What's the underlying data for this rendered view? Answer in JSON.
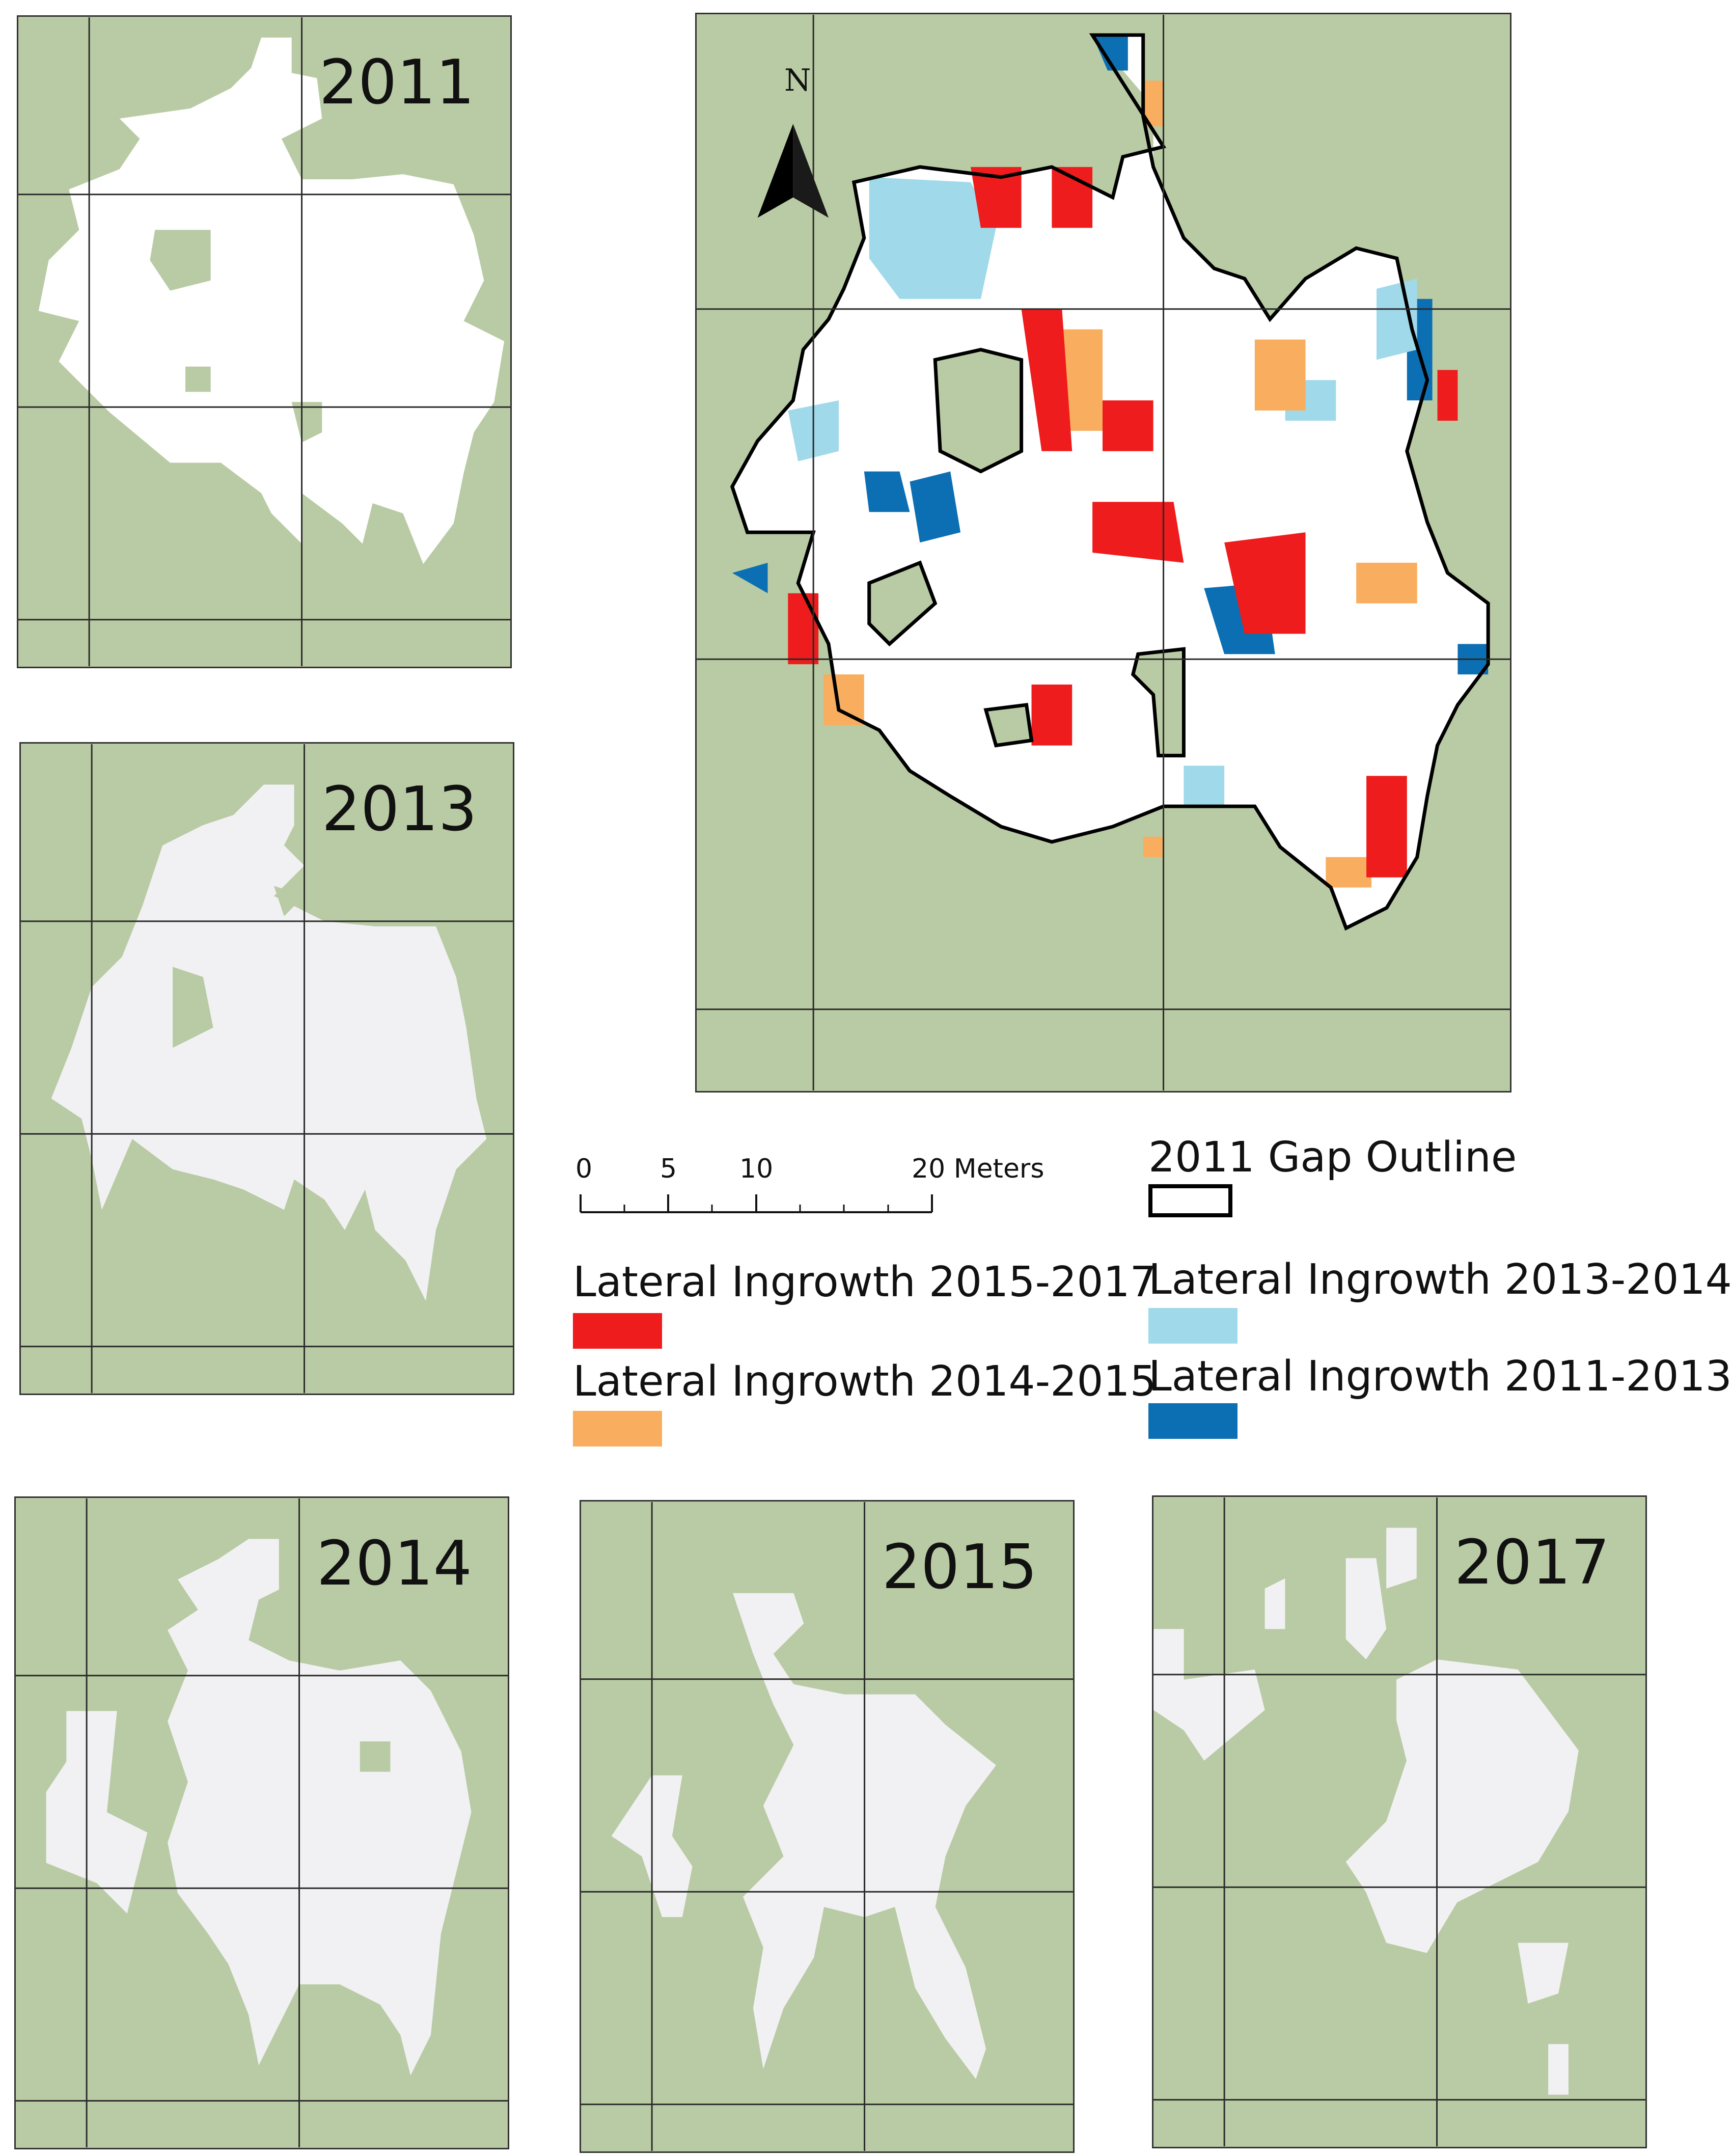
{
  "panels": {
    "p2011": {
      "year": "2011"
    },
    "p2013": {
      "year": "2013"
    },
    "p2014": {
      "year": "2014"
    },
    "p2015": {
      "year": "2015"
    },
    "p2017": {
      "year": "2017"
    }
  },
  "main_map": {
    "north_label": "N"
  },
  "scale_bar": {
    "ticks": [
      "0",
      "5",
      "10",
      "20 Meters"
    ]
  },
  "legend": {
    "outline_label": "2011 Gap Outline",
    "items": [
      {
        "label": "Lateral Ingrowth 2015-2017",
        "color": "#ee1c1c"
      },
      {
        "label": "Lateral Ingrowth 2014-2015",
        "color": "#f9ad5e"
      },
      {
        "label": "Lateral Ingrowth 2013-2014",
        "color": "#9fd9ea"
      },
      {
        "label": "Lateral Ingrowth 2011-2013",
        "color": "#0c6fb3"
      }
    ]
  },
  "colors": {
    "background": "#b9cba4",
    "gap": "#f1f1f3",
    "gap_2011": "#ffffff",
    "outline": "#000000"
  }
}
